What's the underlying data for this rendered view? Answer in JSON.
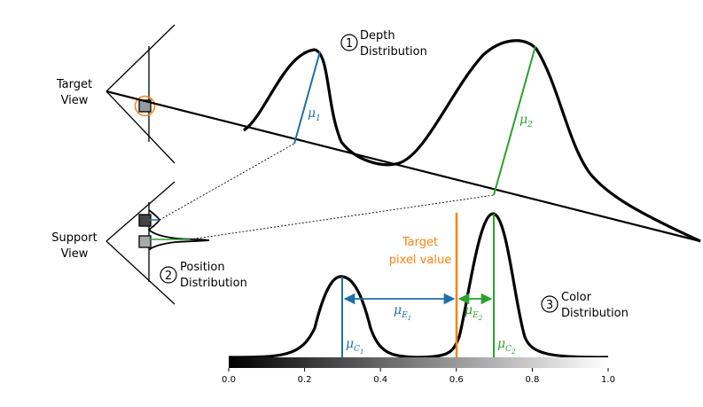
{
  "labels": {
    "target_view": [
      "Target",
      "View"
    ],
    "support_view": [
      "Support",
      "View"
    ],
    "depth": {
      "num": "1",
      "lines": [
        "Depth",
        "Distribution"
      ]
    },
    "position": {
      "num": "2",
      "lines": [
        "Position",
        "Distribution"
      ]
    },
    "color": {
      "num": "3",
      "lines": [
        "Color",
        "Distribution"
      ]
    },
    "target_pixel": [
      "Target",
      "pixel value"
    ]
  },
  "symbols": {
    "mu1": {
      "base": "μ",
      "sub": "1"
    },
    "mu2": {
      "base": "μ",
      "sub": "2"
    },
    "muE1": {
      "base": "μ",
      "sub": "E",
      "subsub": "1"
    },
    "muE2": {
      "base": "μ",
      "sub": "E",
      "subsub": "2"
    },
    "muC1": {
      "base": "μ",
      "sub": "C",
      "subsub": "1"
    },
    "muC2": {
      "base": "μ",
      "sub": "C",
      "subsub": "2"
    }
  },
  "colorbar": {
    "ticks": [
      "0.0",
      "0.2",
      "0.4",
      "0.6",
      "0.8",
      "1.0"
    ],
    "target_value": 0.6,
    "peak_values": [
      0.3,
      0.7
    ]
  },
  "colors": {
    "blue": "#1f6fa8",
    "green": "#2ca02c",
    "orange": "#ff7f0e",
    "dark_gray": "#444444",
    "light_gray": "#aaaaaa"
  }
}
